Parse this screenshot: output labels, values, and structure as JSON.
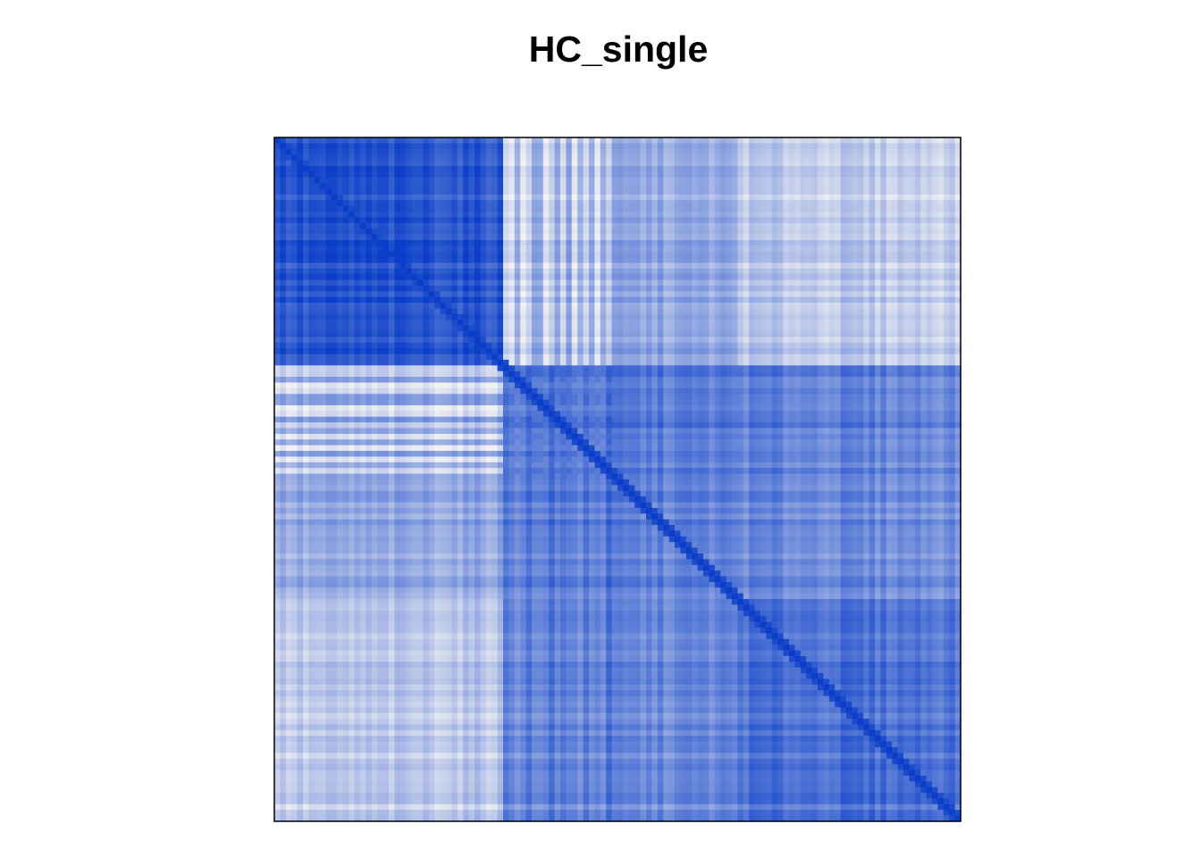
{
  "chart_data": {
    "type": "heatmap",
    "title": "HC_single",
    "xlabel": "",
    "ylabel": "",
    "n": 120,
    "value_range": [
      0,
      1
    ],
    "colors": {
      "low": "#f1f1f3",
      "high": "#0a3ec8",
      "border": "#000000"
    },
    "clusters": [
      {
        "start": 0,
        "size": 40
      },
      {
        "start": 40,
        "size": 41
      },
      {
        "start": 81,
        "size": 39
      }
    ],
    "bridge_rows": [
      40,
      41,
      43,
      44,
      47,
      48,
      50,
      52,
      54,
      56,
      58
    ],
    "similarity": {
      "within_cluster_1": 0.88,
      "within_cluster_2": 0.62,
      "within_cluster_3": 0.72,
      "cluster1_vs_cluster2": 0.45,
      "cluster1_vs_cluster3": 0.3,
      "cluster2_vs_cluster3": 0.6,
      "bridge_vs_cluster1": 0.15,
      "bridge_vs_others": 0.7,
      "diagonal": 1.0
    },
    "grid": false,
    "legend": "none"
  }
}
